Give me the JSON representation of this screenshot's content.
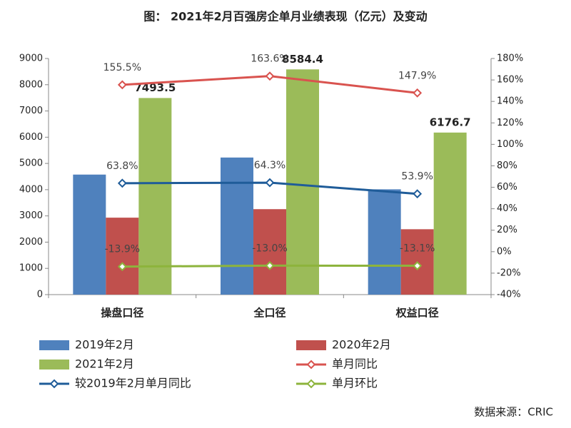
{
  "chart_data": {
    "type": "bar",
    "title": "图： 2021年2月百强房企单月业绩表现（亿元）及变动",
    "source": "数据来源：CRIC",
    "categories": [
      "操盘口径",
      "全口径",
      "权益口径"
    ],
    "series": [
      {
        "name": "2019年2月",
        "type": "bar",
        "color": "#4f81bd",
        "values": [
          4575,
          5225,
          4013
        ]
      },
      {
        "name": "2020年2月",
        "type": "bar",
        "color": "#c0504d",
        "values": [
          2933,
          3257,
          2492
        ]
      },
      {
        "name": "2021年2月",
        "type": "bar",
        "color": "#9bbb59",
        "values": [
          7493.5,
          8584.4,
          6176.7
        ],
        "value_labels": [
          "7493.5",
          "8584.4",
          "6176.7"
        ]
      },
      {
        "name": "单月同比",
        "type": "line",
        "axis": "y2",
        "color": "#d9534f",
        "values": [
          155.5,
          163.6,
          147.9
        ],
        "value_labels": [
          "155.5%",
          "163.6%",
          "147.9%"
        ]
      },
      {
        "name": "较2019年2月单月同比",
        "type": "line",
        "axis": "y2",
        "color": "#1f5c99",
        "values": [
          63.8,
          64.3,
          53.9
        ],
        "value_labels": [
          "63.8%",
          "64.3%",
          "53.9%"
        ]
      },
      {
        "name": "单月环比",
        "type": "line",
        "axis": "y2",
        "color": "#8db43c",
        "values": [
          -13.9,
          -13.0,
          -13.1
        ],
        "value_labels": [
          "-13.9%",
          "-13.0%",
          "-13.1%"
        ]
      }
    ],
    "ylim": [
      0,
      9000
    ],
    "yticks": [
      0,
      1000,
      2000,
      3000,
      4000,
      5000,
      6000,
      7000,
      8000,
      9000
    ],
    "y2lim": [
      -40,
      180
    ],
    "y2ticks": [
      {
        "value": -40,
        "label": "-40%"
      },
      {
        "value": -20,
        "label": "-20%"
      },
      {
        "value": 0,
        "label": "0%"
      },
      {
        "value": 20,
        "label": "20%"
      },
      {
        "value": 40,
        "label": "40%"
      },
      {
        "value": 60,
        "label": "60%"
      },
      {
        "value": 80,
        "label": "80%"
      },
      {
        "value": 100,
        "label": "100%"
      },
      {
        "value": 120,
        "label": "120%"
      },
      {
        "value": 140,
        "label": "140%"
      },
      {
        "value": 160,
        "label": "160%"
      },
      {
        "value": 180,
        "label": "180%"
      }
    ],
    "grid": false
  }
}
